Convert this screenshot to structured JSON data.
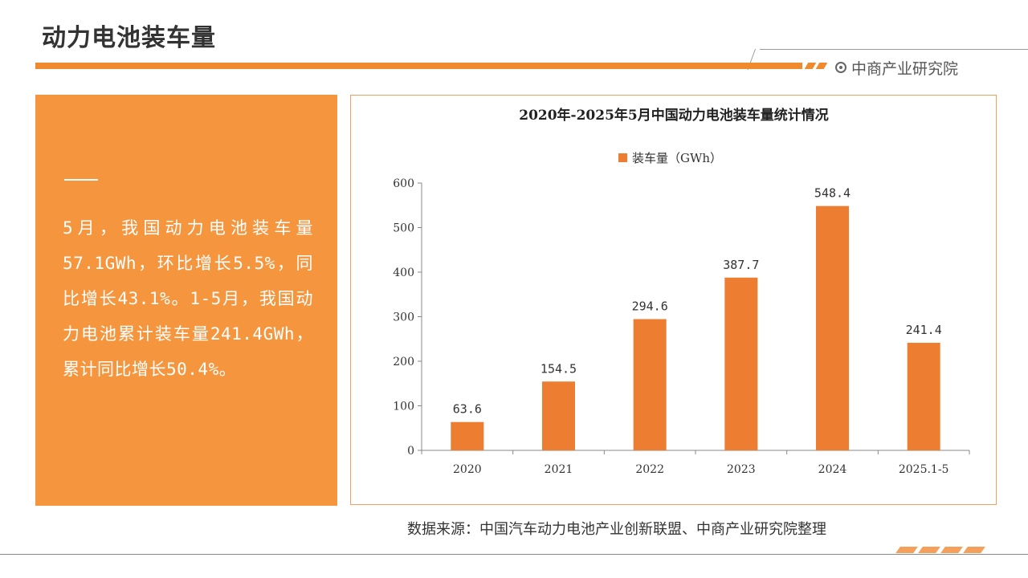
{
  "page": {
    "title": "动力电池装车量",
    "brand": "中商产业研究院",
    "accent_color": "#f08a2e",
    "panel_color": "#f5963e"
  },
  "summary": {
    "text": "5月，我国动力电池装车量57.1GWh，环比增长5.5%，同比增长43.1%。1-5月，我国动力电池累计装车量241.4GWh，累计同比增长50.4%。"
  },
  "chart_data": {
    "type": "bar",
    "title": "2020年-2025年5月中国动力电池装车量统计情况",
    "legend_position": "top-center",
    "series": [
      {
        "name": "装车量（GWh）",
        "color": "#ed7d31",
        "values": [
          63.6,
          154.5,
          294.6,
          387.7,
          548.4,
          241.4
        ]
      }
    ],
    "categories": [
      "2020",
      "2021",
      "2022",
      "2023",
      "2024",
      "2025.1-5"
    ],
    "ylim": [
      0,
      600
    ],
    "yticks": [
      0,
      100,
      200,
      300,
      400,
      500,
      600
    ],
    "grid": false
  },
  "source": "数据来源：中国汽车动力电池产业创新联盟、中商产业研究院整理"
}
